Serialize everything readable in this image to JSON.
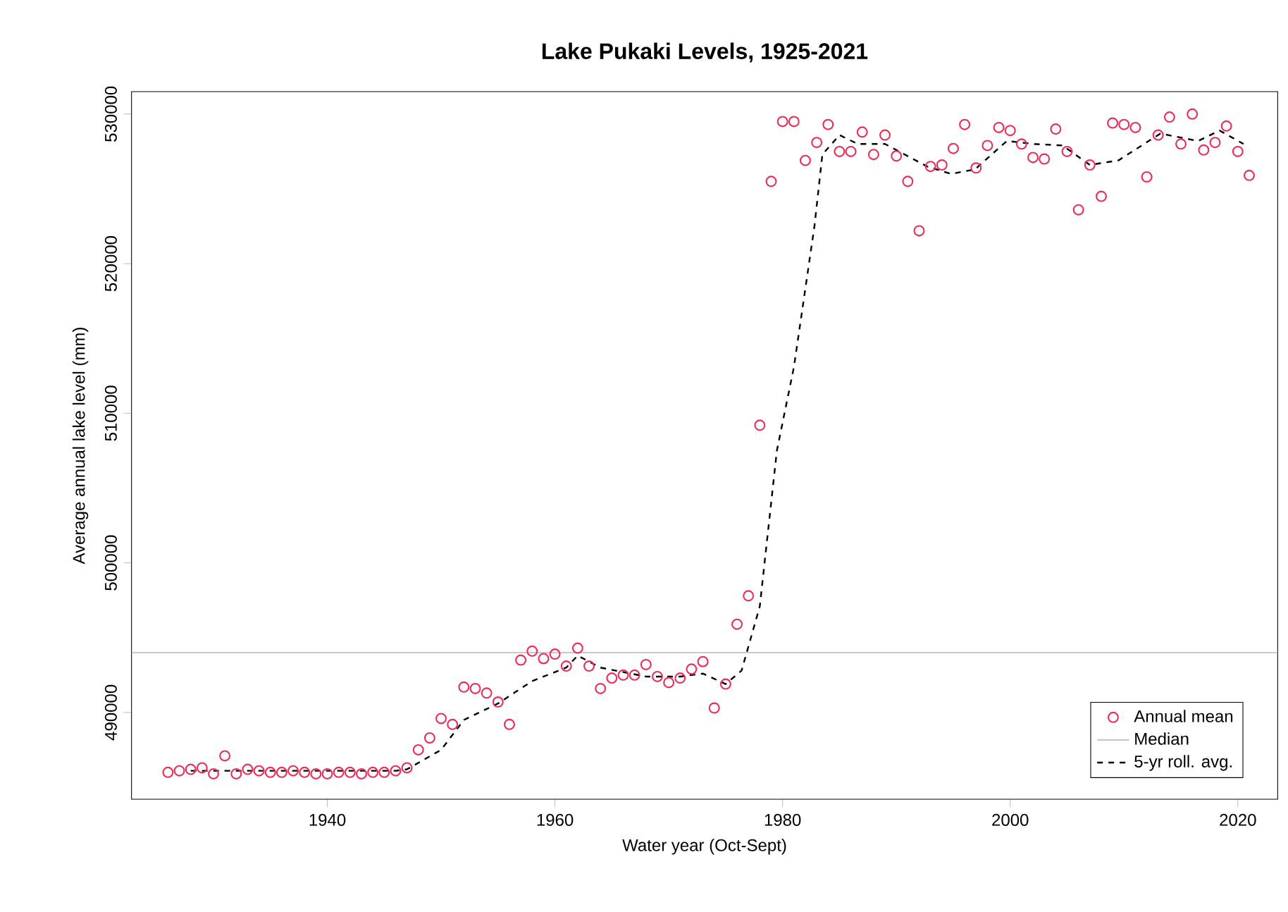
{
  "chart_data": {
    "type": "scatter",
    "title": "Lake Pukaki Levels, 1925-2021",
    "xlabel": "Water year (Oct-Sept)",
    "ylabel": "Average annual lake level (mm)",
    "xlim": [
      1922.8,
      2023.5
    ],
    "ylim": [
      484200,
      531500
    ],
    "xticks": [
      1940,
      1960,
      1980,
      2000,
      2020
    ],
    "yticks": [
      490000,
      500000,
      510000,
      520000,
      530000
    ],
    "grid": false,
    "legend": "bottom right",
    "ref_lines": [
      {
        "axis": "y",
        "value": 494000,
        "label": "Median",
        "color": "#c8c8c8",
        "line_style": "solid"
      }
    ],
    "series": [
      {
        "name": "Annual mean",
        "marker": "circle",
        "color": "#e8305a",
        "x": [
          1926,
          1927,
          1928,
          1929,
          1930,
          1931,
          1932,
          1933,
          1934,
          1935,
          1936,
          1937,
          1938,
          1939,
          1940,
          1941,
          1942,
          1943,
          1944,
          1945,
          1946,
          1947,
          1948,
          1949,
          1950,
          1951,
          1952,
          1953,
          1954,
          1955,
          1956,
          1957,
          1958,
          1959,
          1960,
          1961,
          1962,
          1963,
          1964,
          1965,
          1966,
          1967,
          1968,
          1969,
          1970,
          1971,
          1972,
          1973,
          1974,
          1975,
          1976,
          1977,
          1978,
          1979,
          1980,
          1981,
          1982,
          1983,
          1984,
          1985,
          1986,
          1987,
          1988,
          1989,
          1990,
          1991,
          1992,
          1993,
          1994,
          1995,
          1996,
          1997,
          1998,
          1999,
          2000,
          2001,
          2002,
          2003,
          2004,
          2005,
          2006,
          2007,
          2008,
          2009,
          2010,
          2011,
          2012,
          2013,
          2014,
          2015,
          2016,
          2017,
          2018,
          2019,
          2020,
          2021
        ],
        "values": [
          486000,
          486100,
          486200,
          486300,
          485900,
          487100,
          485900,
          486200,
          486100,
          486000,
          486000,
          486100,
          486000,
          485900,
          485900,
          486000,
          486000,
          485900,
          486000,
          486000,
          486100,
          486300,
          487500,
          488300,
          489600,
          489200,
          491700,
          491600,
          491300,
          490700,
          489200,
          493500,
          494100,
          493600,
          493900,
          493100,
          494300,
          493100,
          491600,
          492300,
          492500,
          492500,
          493200,
          492400,
          492000,
          492300,
          492900,
          493400,
          490300,
          491900,
          495900,
          497800,
          509200,
          525500,
          529500,
          529500,
          526900,
          528100,
          529300,
          527500,
          527500,
          528800,
          527300,
          528600,
          527200,
          525500,
          522200,
          526500,
          526600,
          527700,
          529300,
          526400,
          527900,
          529100,
          528900,
          528000,
          527100,
          527000,
          529000,
          527500,
          523600,
          526600,
          524500,
          529400,
          529300,
          529100,
          525800,
          528600,
          529800,
          528000,
          530000,
          527600,
          528100,
          529200,
          527500,
          525900
        ]
      },
      {
        "name": "5-yr roll. avg.",
        "type": "line",
        "marker": "none",
        "line_style": "dashed",
        "color": "#000000",
        "x": [
          1928,
          1933,
          1946,
          1947,
          1950,
          1952,
          1955,
          1958,
          1961,
          1962,
          1964,
          1968,
          1971,
          1973,
          1975,
          1976.4,
          1978,
          1979.5,
          1981,
          1982.8,
          1983.5,
          1985,
          1986.6,
          1989,
          1992.7,
          1994.8,
          1996.9,
          1999.7,
          2002.1,
          2004.6,
          2007,
          2009.5,
          2013.2,
          2016.5,
          2018.4,
          2020.5
        ],
        "values": [
          486100,
          486100,
          486100,
          486200,
          487500,
          489500,
          490600,
          492100,
          493000,
          493800,
          493000,
          492400,
          492400,
          492600,
          491900,
          492800,
          497100,
          507500,
          513100,
          522500,
          527300,
          528600,
          528000,
          528000,
          526500,
          526000,
          526300,
          528200,
          528000,
          527900,
          526600,
          526900,
          528700,
          528200,
          528900,
          528000
        ]
      }
    ]
  }
}
